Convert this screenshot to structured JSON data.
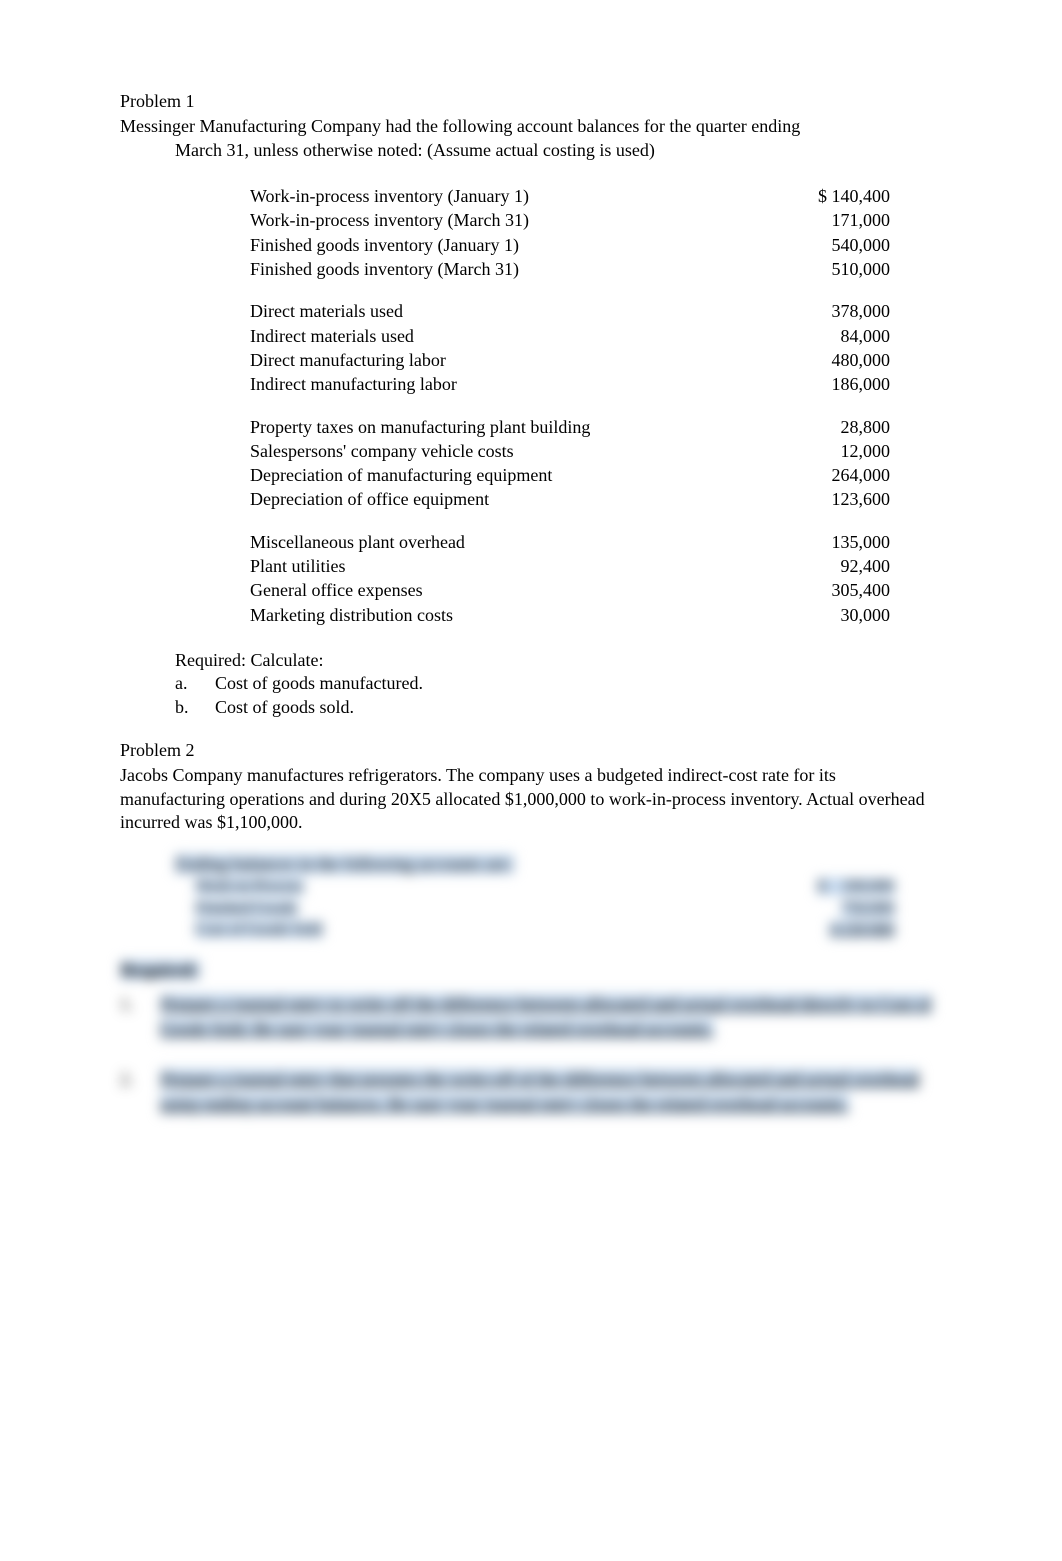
{
  "p1": {
    "heading": "Problem 1",
    "intro_l1": "Messinger Manufacturing Company had the following account balances for the quarter ending",
    "intro_l2": "March 31, unless otherwise noted: (Assume actual costing is used)",
    "groups": [
      [
        {
          "label": "Work-in-process inventory (January 1)",
          "value": "$ 140,400"
        },
        {
          "label": "Work-in-process inventory (March 31)",
          "value": "171,000"
        },
        {
          "label": "Finished goods inventory (January 1)",
          "value": "540,000"
        },
        {
          "label": "Finished goods inventory (March 31)",
          "value": "510,000"
        }
      ],
      [
        {
          "label": "Direct materials used",
          "value": "378,000"
        },
        {
          "label": "Indirect materials used",
          "value": "84,000"
        },
        {
          "label": "Direct manufacturing labor",
          "value": "480,000"
        },
        {
          "label": "Indirect manufacturing labor",
          "value": "186,000"
        }
      ],
      [
        {
          "label": "Property taxes on manufacturing plant building",
          "value": "28,800"
        },
        {
          "label": "Salespersons' company vehicle costs",
          "value": "12,000"
        },
        {
          "label": "Depreciation of manufacturing equipment",
          "value": "264,000"
        },
        {
          "label": "Depreciation of office equipment",
          "value": "123,600"
        }
      ],
      [
        {
          "label": "Miscellaneous plant overhead",
          "value": "135,000"
        },
        {
          "label": "Plant utilities",
          "value": "92,400"
        },
        {
          "label": "General office expenses",
          "value": "305,400"
        },
        {
          "label": "Marketing distribution costs",
          "value": "30,000"
        }
      ]
    ],
    "required_label": "Required:  Calculate:",
    "req_a_letter": "a.",
    "req_a_text": "Cost of goods manufactured.",
    "req_b_letter": "b.",
    "req_b_text": "Cost of goods sold."
  },
  "p2": {
    "heading": "Problem 2",
    "para": "Jacobs Company manufactures refrigerators.  The company uses a budgeted indirect-cost rate for its manufacturing operations and during 20X5 allocated $1,000,000 to work-in-process inventory. Actual overhead incurred was $1,100,000.",
    "blur_intro": "Ending balances in the following accounts are:",
    "blur_rows": [
      {
        "label": "Work-in-Process",
        "value": "$    100,000"
      },
      {
        "label": "Finished Goods",
        "value": "750,000"
      },
      {
        "label": "Cost of Goods Sold",
        "value": "4,150,000"
      }
    ],
    "blur_required": "Required:",
    "blur_q1_num": "1.",
    "blur_q1_text": "Prepare a journal entry to write off the difference between allocated and actual overhead directly to Cost of Goods Sold. Be sure your journal entry closes the related overhead accounts.",
    "blur_q2_num": "2.",
    "blur_q2_text": "Prepare a journal entry that prorates the write-off of the difference between allocated and actual overhead using ending account balances.  Be sure your journal entry closes the related overhead accounts."
  }
}
